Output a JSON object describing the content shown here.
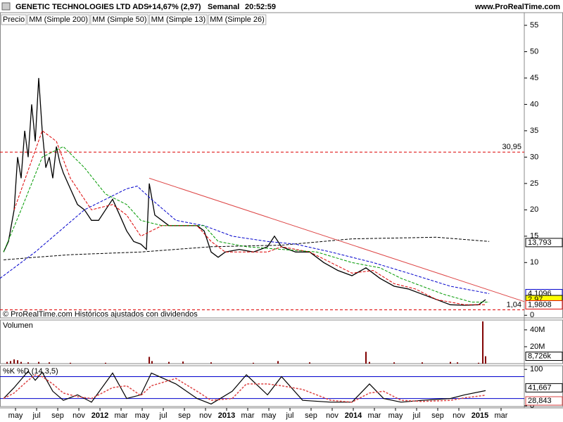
{
  "header": {
    "title": "GENETIC TECHNOLOGIES LTD ADS",
    "change": "+14,67% (2,97)",
    "period": "Semanal",
    "time": "20:52:59",
    "site": "www.ProRealTime.com",
    "footer": "© ProRealTime.com Históricos ajustados con dividendos"
  },
  "chart_data": [
    {
      "type": "line",
      "xlim": [
        -0.47,
        49.2
      ],
      "ylim": [
        -0.5,
        57.4
      ],
      "yticks": [
        0,
        10,
        15,
        20,
        25,
        30,
        35,
        40,
        45,
        50,
        55
      ],
      "xticks": [
        {
          "value": 1,
          "label": "may"
        },
        {
          "value": 3,
          "label": "jul"
        },
        {
          "value": 5,
          "label": "sep"
        },
        {
          "value": 7,
          "label": "nov"
        },
        {
          "value": 9,
          "label": "2012"
        },
        {
          "value": 11,
          "label": "mar"
        },
        {
          "value": 13,
          "label": "may"
        },
        {
          "value": 15,
          "label": "jul"
        },
        {
          "value": 17,
          "label": "sep"
        },
        {
          "value": 19,
          "label": "nov"
        },
        {
          "value": 21,
          "label": "2013"
        },
        {
          "value": 23,
          "label": "mar"
        },
        {
          "value": 25,
          "label": "may"
        },
        {
          "value": 27,
          "label": "jul"
        },
        {
          "value": 29,
          "label": "sep"
        },
        {
          "value": 31,
          "label": "nov"
        },
        {
          "value": 33,
          "label": "2014"
        },
        {
          "value": 35,
          "label": "mar"
        },
        {
          "value": 37,
          "label": "may"
        },
        {
          "value": 39,
          "label": "jul"
        },
        {
          "value": 41,
          "label": "sep"
        },
        {
          "value": 43,
          "label": "nov"
        },
        {
          "value": 45,
          "label": "2015"
        },
        {
          "value": 47,
          "label": "mar"
        }
      ],
      "series": [
        {
          "name": "Precio",
          "color": "#000000",
          "x": [
            -0.13,
            0.33,
            0.87,
            1.2,
            1.53,
            1.87,
            2.2,
            2.53,
            2.87,
            3.2,
            3.53,
            3.87,
            4.2,
            4.53,
            4.87,
            5.2,
            5.53,
            6.2,
            6.87,
            7.53,
            8.2,
            8.87,
            9.53,
            10.2,
            10.87,
            11.53,
            12.2,
            12.87,
            13.4,
            13.67,
            14.2,
            14.87,
            15.53,
            16.87,
            18.2,
            18.87,
            19.53,
            20.2,
            20.87,
            22.2,
            23.53,
            24.87,
            25.53,
            26.2,
            27.53,
            28.87,
            30.2,
            31.53,
            32.87,
            34.2,
            35.53,
            36.87,
            38.2,
            39.53,
            40.87,
            42.2,
            43.53,
            44.87,
            45.53
          ],
          "values": [
            12,
            14,
            20,
            30,
            26,
            35,
            30,
            40,
            33,
            45,
            35,
            28,
            30,
            26,
            32,
            29,
            27,
            24,
            21,
            20,
            18,
            18,
            20,
            22,
            19,
            16,
            14,
            13.5,
            12.5,
            25,
            19,
            18,
            17,
            17,
            17,
            16,
            12,
            11,
            12,
            12.5,
            12,
            13,
            15,
            13,
            12,
            12,
            10,
            8.5,
            7.5,
            9,
            7,
            5.5,
            5,
            4,
            3,
            2,
            1.9,
            2,
            2.97
          ]
        },
        {
          "name": "MM (Simple 200)",
          "color": "#000000",
          "x": [
            -0.13,
            2.87,
            6.2,
            12.87,
            19.53,
            26.2,
            32.87,
            40.87,
            45.87
          ],
          "values": [
            10.5,
            11,
            11.5,
            12,
            13,
            13.3,
            14.5,
            14.8,
            14
          ]
        },
        {
          "name": "MM (Simple 50)",
          "color": "#0000cc",
          "x": [
            -0.47,
            2.87,
            7.53,
            11.53,
            12.53,
            13.87,
            16.2,
            18.87,
            21.53,
            24.87,
            27.53,
            30.87,
            34.87,
            38.2,
            42.2,
            44.87,
            45.87
          ],
          "values": [
            7,
            12,
            20,
            24,
            24.5,
            22,
            18,
            17,
            15,
            14,
            13.5,
            12,
            10,
            8,
            5.5,
            4.5,
            4.1
          ]
        },
        {
          "name": "MM (Simple 13)",
          "color": "#dd0000",
          "x": [
            0.87,
            3.53,
            4.87,
            6.2,
            8.2,
            10.2,
            11.53,
            12.87,
            14.87,
            18.2,
            19.53,
            20.87,
            24.87,
            26.2,
            28.87,
            30.87,
            32.87,
            34.87,
            36.87,
            38.87,
            40.87,
            43.53,
            45.53
          ],
          "values": [
            20,
            35,
            33,
            26,
            20,
            21,
            19,
            15,
            17,
            17,
            14,
            12,
            12,
            13,
            12,
            10,
            8,
            8.5,
            6,
            5,
            3,
            2,
            2
          ]
        },
        {
          "name": "MM (Simple 26)",
          "color": "#009900",
          "x": [
            -0.13,
            1.53,
            3.53,
            5.53,
            7.53,
            9.53,
            11.53,
            12.87,
            14.87,
            18.87,
            20.2,
            22.87,
            26.2,
            29.53,
            32.87,
            35.53,
            37.53,
            39.53,
            41.53,
            44.2,
            45.87
          ],
          "values": [
            12,
            20,
            30,
            32,
            28,
            23,
            21,
            18,
            17,
            17,
            14,
            13,
            12.5,
            12,
            10,
            9,
            7,
            5.5,
            4,
            2.5,
            2.5
          ]
        }
      ],
      "reference_lines": [
        {
          "value": 30.95,
          "label": "30,95"
        },
        {
          "value": 1.04,
          "label": "1,04"
        }
      ],
      "trendline": {
        "x": [
          13.67,
          49.2
        ],
        "values": [
          26,
          2.6
        ]
      },
      "last_labels": [
        {
          "value": 13.793,
          "label": "13,793",
          "color": "#000000"
        },
        {
          "value": 4.1096,
          "label": "4,1096",
          "color": "#0000cc"
        },
        {
          "value": 2.97,
          "label": "2,97",
          "color": "#000000"
        },
        {
          "value": 1.9808,
          "label": "1,9808",
          "color": "#dd0000"
        }
      ]
    },
    {
      "type": "bar",
      "title": "Volumen",
      "color": "#800000",
      "ylim": [
        0,
        51.6
      ],
      "yticks": [
        {
          "value": 20,
          "label": "20M"
        },
        {
          "value": 40,
          "label": "40M"
        }
      ],
      "x": [
        0.2,
        0.53,
        0.87,
        1.2,
        1.53,
        2.2,
        3.2,
        4.2,
        6.2,
        9.53,
        13.67,
        13.93,
        15.53,
        16.87,
        19.53,
        23.53,
        25.87,
        28.87,
        34.2,
        34.53,
        36.87,
        39.53,
        42.2,
        42.87,
        44.87,
        45.27,
        45.53
      ],
      "values": [
        2,
        3,
        5,
        4,
        2,
        1.5,
        2,
        1.5,
        1,
        1,
        8,
        3,
        2,
        2.5,
        1.5,
        1,
        3,
        1.5,
        14,
        2,
        1.5,
        1.5,
        2,
        1.5,
        1,
        50,
        8.726
      ],
      "value_labels": [
        null,
        null,
        null,
        null,
        null,
        null,
        null,
        null,
        null,
        null,
        null,
        null,
        null,
        null,
        null,
        null,
        null,
        null,
        null,
        null,
        null,
        null,
        null,
        null,
        null,
        null,
        "8,726k"
      ]
    },
    {
      "type": "line",
      "title": "%K",
      "ylim": [
        -2,
        110
      ],
      "yticks": [
        0,
        100
      ],
      "reference_lines": [
        {
          "value": 80
        },
        {
          "value": 20
        }
      ],
      "x": [
        -0.13,
        0.87,
        2.2,
        2.87,
        3.53,
        4.53,
        5.53,
        6.87,
        8.2,
        10.2,
        11.53,
        12.87,
        13.87,
        16.2,
        18.2,
        19.53,
        21.53,
        22.87,
        24.87,
        26.2,
        28.2,
        30.87,
        32.87,
        34.53,
        35.87,
        37.53,
        39.53,
        42.2,
        43.53,
        45.53
      ],
      "series": [
        {
          "name": "%K",
          "color": "#000000",
          "values": [
            20,
            50,
            95,
            70,
            92,
            40,
            15,
            30,
            10,
            90,
            20,
            30,
            90,
            60,
            20,
            5,
            40,
            85,
            30,
            80,
            15,
            10,
            10,
            60,
            20,
            10,
            15,
            20,
            30,
            41.667
          ],
          "last_label": "41,667"
        },
        {
          "name": "%D (14,3,5)",
          "color": "#dd4444",
          "values": [
            20,
            35,
            70,
            85,
            80,
            60,
            35,
            25,
            20,
            50,
            55,
            28,
            55,
            75,
            40,
            15,
            20,
            60,
            60,
            55,
            45,
            15,
            10,
            35,
            40,
            15,
            12,
            15,
            22,
            28.843
          ],
          "last_label": "28,843"
        }
      ]
    }
  ]
}
